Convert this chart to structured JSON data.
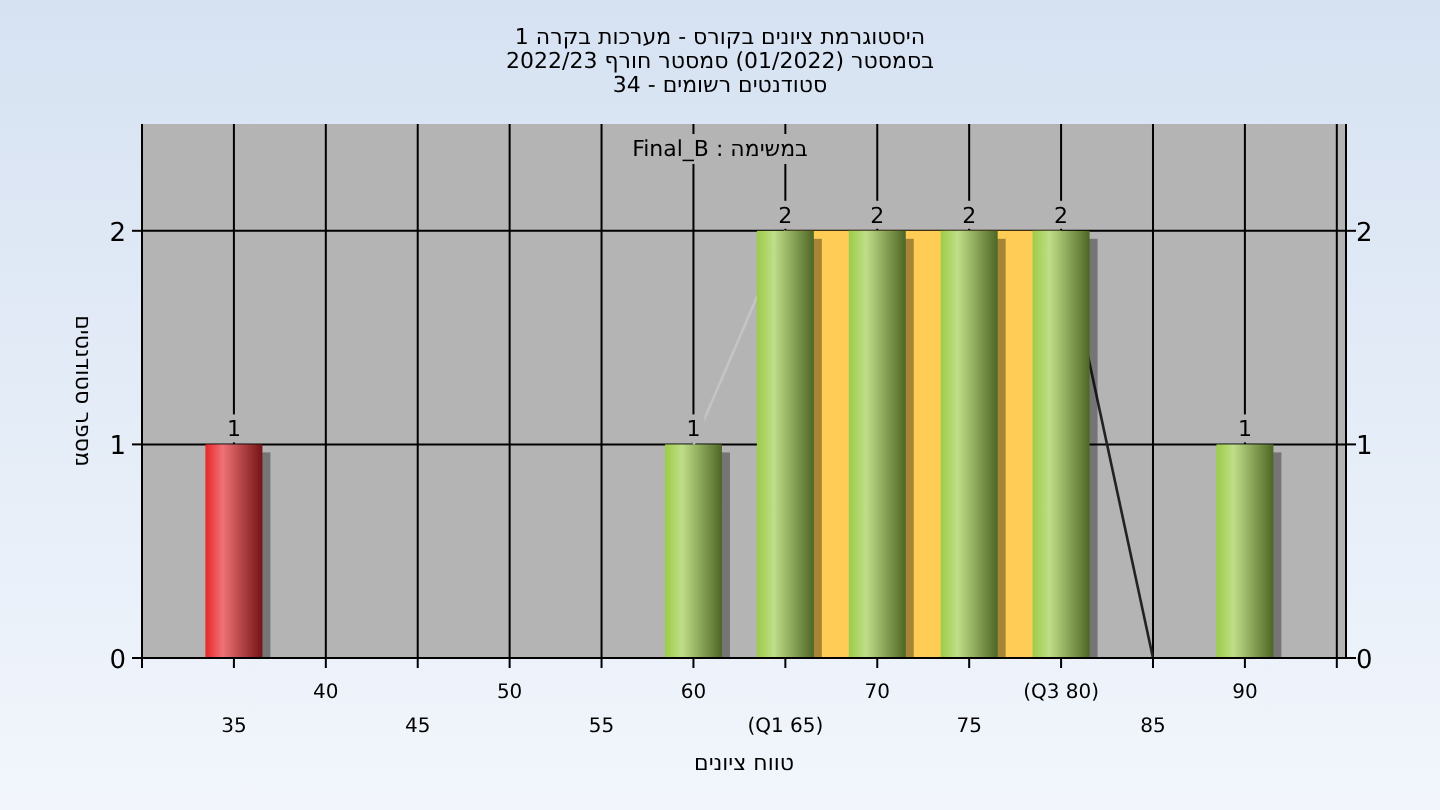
{
  "chart_data": {
    "type": "bar",
    "title": "היסטוגרמת ציונים בקורס - מערכות בקרה 1",
    "subtitle": "בסמסטר  (01/2022)  סמסטר חורף 2022/23\nסטודנטים רשומים - 34",
    "annotations": [
      "במשימה : Final_B"
    ],
    "xlabel": "טווח ציונים",
    "ylabel": "מספר סטודנטים",
    "categories": [
      "35",
      "40",
      "45",
      "50",
      "55",
      "60",
      "(Q1 65)",
      "70",
      "75",
      "(Q3 80)",
      "85",
      "90"
    ],
    "series": [
      {
        "type": "area",
        "color": "#ffcc55",
        "values": [
          null,
          null,
          null,
          null,
          null,
          null,
          2,
          2,
          2,
          2,
          null,
          null
        ]
      },
      {
        "type": "line",
        "color": "#c4c4c4",
        "values": [
          null,
          null,
          null,
          null,
          null,
          1,
          2,
          null,
          null,
          null,
          null,
          null
        ]
      },
      {
        "type": "line",
        "color": "#222222",
        "values": [
          null,
          null,
          null,
          null,
          null,
          null,
          null,
          null,
          null,
          2,
          0,
          null
        ]
      },
      {
        "colors": [
          "#e8262a",
          "#9ccc48",
          "#9ccc48",
          "#9ccc48",
          "#9ccc48",
          "#9ccc48",
          "#9ccc48",
          "#9ccc48",
          "#9ccc48",
          "#9ccc48",
          "#9ccc48",
          "#9ccc48"
        ],
        "values": [
          1,
          0,
          0,
          0,
          0,
          1,
          2,
          2,
          2,
          2,
          0,
          1
        ],
        "value_labels": [
          "1",
          null,
          null,
          null,
          null,
          "1",
          "2",
          "2",
          "2",
          "2",
          null,
          "1"
        ]
      }
    ],
    "ylim": [
      0,
      2.5
    ],
    "yticks": [
      0,
      1,
      2
    ],
    "y2lim": [
      0,
      2.5
    ],
    "y2ticks": [
      0,
      1,
      2
    ],
    "grid": true
  }
}
